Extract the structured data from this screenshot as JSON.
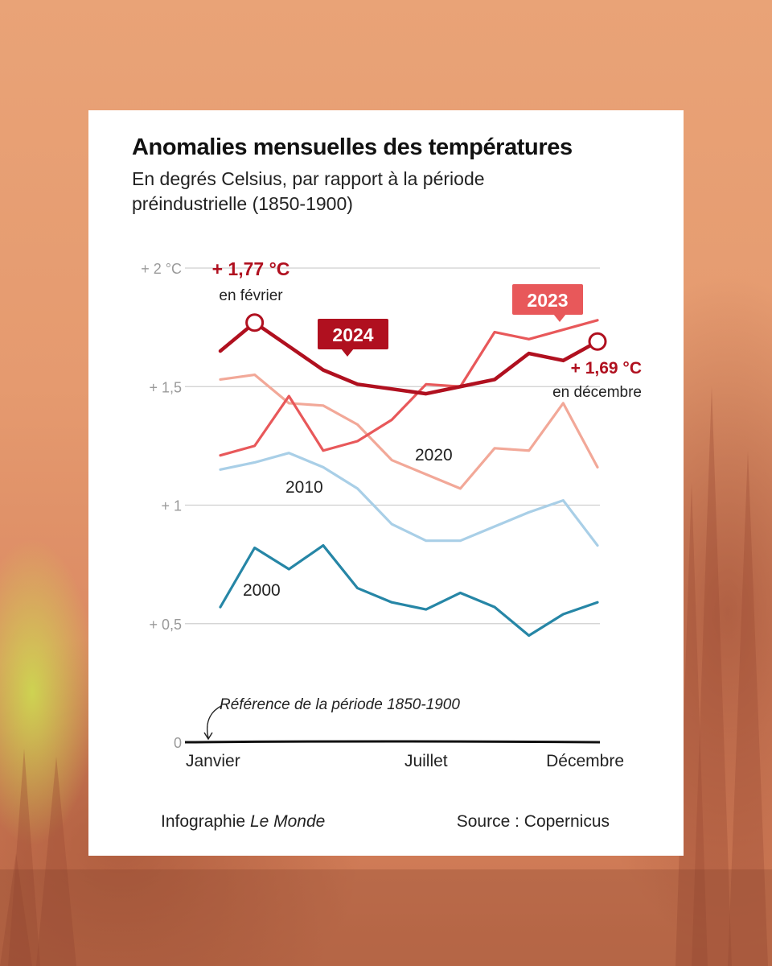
{
  "credit": {
    "prefix": "Infographie",
    "publication": "Le Monde"
  },
  "source": "Source : Copernicus",
  "icons": {
    "reference-arrow": "curved-arrow-down",
    "highlight-marker": "hollow-circle"
  },
  "colors": {
    "s2024": "#b0101f",
    "s2023": "#e8585a",
    "s2020": "#f2a898",
    "s2010": "#a9cfe7",
    "s2000": "#2686a6",
    "grid": "#cfcfcf",
    "axis_text": "#9a9a9a"
  },
  "chart_data": {
    "type": "line",
    "title": "Anomalies mensuelles des températures",
    "subtitle": "En degrés Celsius, par rapport à la période préindustrielle (1850-1900)",
    "x": [
      1,
      2,
      3,
      4,
      5,
      6,
      7,
      8,
      9,
      10,
      11,
      12
    ],
    "x_ticks": [
      {
        "x": 1,
        "label": "Janvier"
      },
      {
        "x": 7,
        "label": "Juillet"
      },
      {
        "x": 12,
        "label": "Décembre"
      }
    ],
    "y_ticks": [
      {
        "value": 0,
        "label": "0"
      },
      {
        "value": 0.5,
        "label": "+ 0,5"
      },
      {
        "value": 1,
        "label": "+ 1"
      },
      {
        "value": 1.5,
        "label": "+ 1,5"
      },
      {
        "value": 2,
        "label": "+ 2 °C"
      }
    ],
    "ylim": [
      0,
      2
    ],
    "grid": true,
    "series": [
      {
        "name": "2000",
        "key": "s2000",
        "values": [
          0.57,
          0.82,
          0.73,
          0.83,
          0.65,
          0.59,
          0.56,
          0.63,
          0.57,
          0.45,
          0.54,
          0.59
        ]
      },
      {
        "name": "2010",
        "key": "s2010",
        "values": [
          1.15,
          1.18,
          1.22,
          1.16,
          1.07,
          0.92,
          0.85,
          0.85,
          0.91,
          0.97,
          1.02,
          0.83
        ]
      },
      {
        "name": "2020",
        "key": "s2020",
        "values": [
          1.53,
          1.55,
          1.43,
          1.42,
          1.34,
          1.19,
          1.13,
          1.07,
          1.24,
          1.23,
          1.43,
          1.16
        ]
      },
      {
        "name": "2023",
        "key": "s2023",
        "values": [
          1.21,
          1.25,
          1.46,
          1.23,
          1.27,
          1.36,
          1.51,
          1.5,
          1.73,
          1.7,
          1.74,
          1.78
        ]
      },
      {
        "name": "2024",
        "key": "s2024",
        "values": [
          1.65,
          1.77,
          1.67,
          1.57,
          1.51,
          1.49,
          1.47,
          1.5,
          1.53,
          1.64,
          1.61,
          1.69
        ]
      }
    ],
    "series_labels": {
      "s2000": "2000",
      "s2010": "2010",
      "s2020": "2020",
      "s2023": "2023",
      "s2024": "2024"
    },
    "annotations": {
      "peak_value": "+ 1,77 °C",
      "peak_when": "en février",
      "end_value": "+ 1,69 °C",
      "end_when": "en décembre",
      "baseline": "Référence de la période 1850-1900"
    }
  }
}
